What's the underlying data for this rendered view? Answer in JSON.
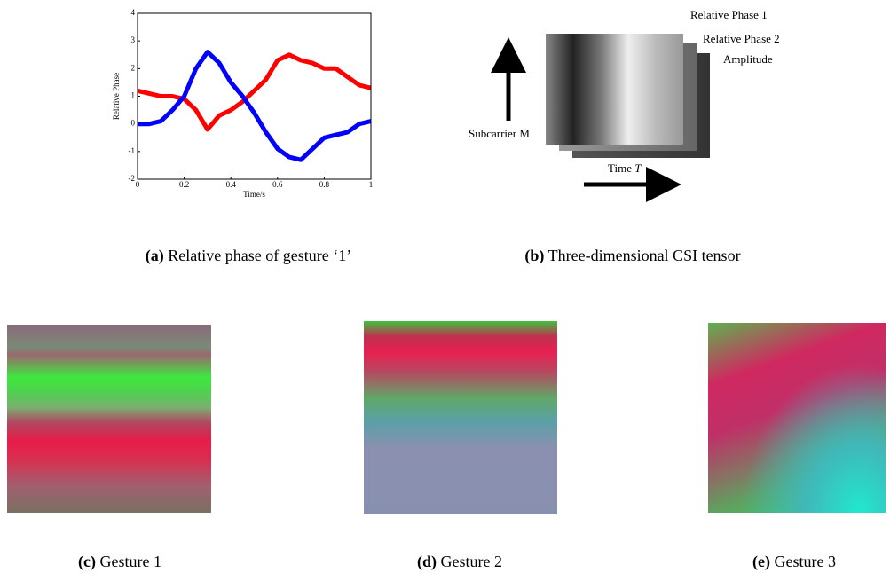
{
  "chart_data": {
    "type": "line",
    "ylabel": "Relative Phase",
    "xlabel": "Time/s",
    "x": [
      0,
      0.05,
      0.1,
      0.15,
      0.2,
      0.25,
      0.3,
      0.35,
      0.4,
      0.45,
      0.5,
      0.55,
      0.6,
      0.65,
      0.7,
      0.75,
      0.8,
      0.85,
      0.9,
      0.95,
      1
    ],
    "xlim": [
      0,
      1
    ],
    "ylim": [
      -2,
      4
    ],
    "xticks": [
      0,
      0.2,
      0.4,
      0.6,
      0.8,
      1
    ],
    "yticks": [
      -2,
      -1,
      0,
      1,
      2,
      3,
      4
    ],
    "series": [
      {
        "color": "#ff0000",
        "values": [
          1.2,
          1.1,
          1.0,
          1.0,
          0.9,
          0.5,
          -0.2,
          0.3,
          0.5,
          0.8,
          1.2,
          1.6,
          2.3,
          2.5,
          2.3,
          2.2,
          2.0,
          2.0,
          1.7,
          1.4,
          1.3
        ]
      },
      {
        "color": "#0000ff",
        "values": [
          0,
          0,
          0.1,
          0.5,
          1.0,
          2.0,
          2.6,
          2.2,
          1.5,
          1.0,
          0.4,
          -0.3,
          -0.9,
          -1.2,
          -1.3,
          -0.9,
          -0.5,
          -0.4,
          -0.3,
          0,
          0.1
        ]
      }
    ]
  },
  "tensor": {
    "layers": [
      "Relative Phase 1",
      "Relative Phase 2",
      "Amplitude"
    ],
    "y_axis": "Subcarrier M",
    "time_label": "Time",
    "time_symbol": "T"
  },
  "captions": [
    {
      "label": "(a)",
      "text": "Relative phase of gesture ‘1’"
    },
    {
      "label": "(b)",
      "text": "Three-dimensional CSI tensor"
    },
    {
      "label": "(c)",
      "text": "Gesture 1"
    },
    {
      "label": "(d)",
      "text": "Gesture 2"
    },
    {
      "label": "(e)",
      "text": "Gesture 3"
    }
  ]
}
